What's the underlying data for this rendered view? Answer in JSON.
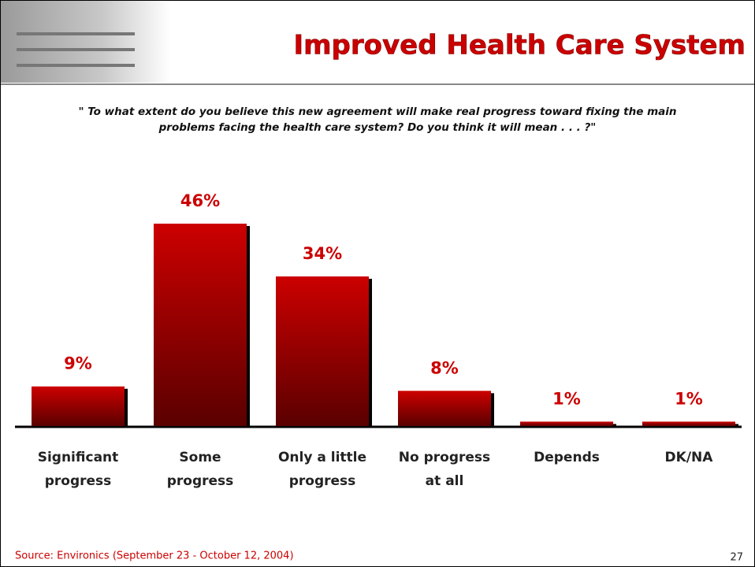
{
  "chart_data": {
    "type": "bar",
    "title": "Improved Health Care System",
    "question": [
      "\" To what extent do you believe this new agreement will make real progress toward fixing the main",
      "problems facing the health care system? Do you think it will mean . . . ?\""
    ],
    "categories": [
      "Significant progress",
      "Some progress",
      "Only a little progress",
      "No progress at all",
      "Depends",
      "DK/NA"
    ],
    "values": [
      9,
      46,
      34,
      8,
      1,
      1
    ],
    "value_labels": [
      "9%",
      "46%",
      "34%",
      "8%",
      "1%",
      "1%"
    ],
    "color": "#cc0000",
    "source": "Source: Environics (September 23 - October 12, 2004)",
    "page_number": "27"
  }
}
